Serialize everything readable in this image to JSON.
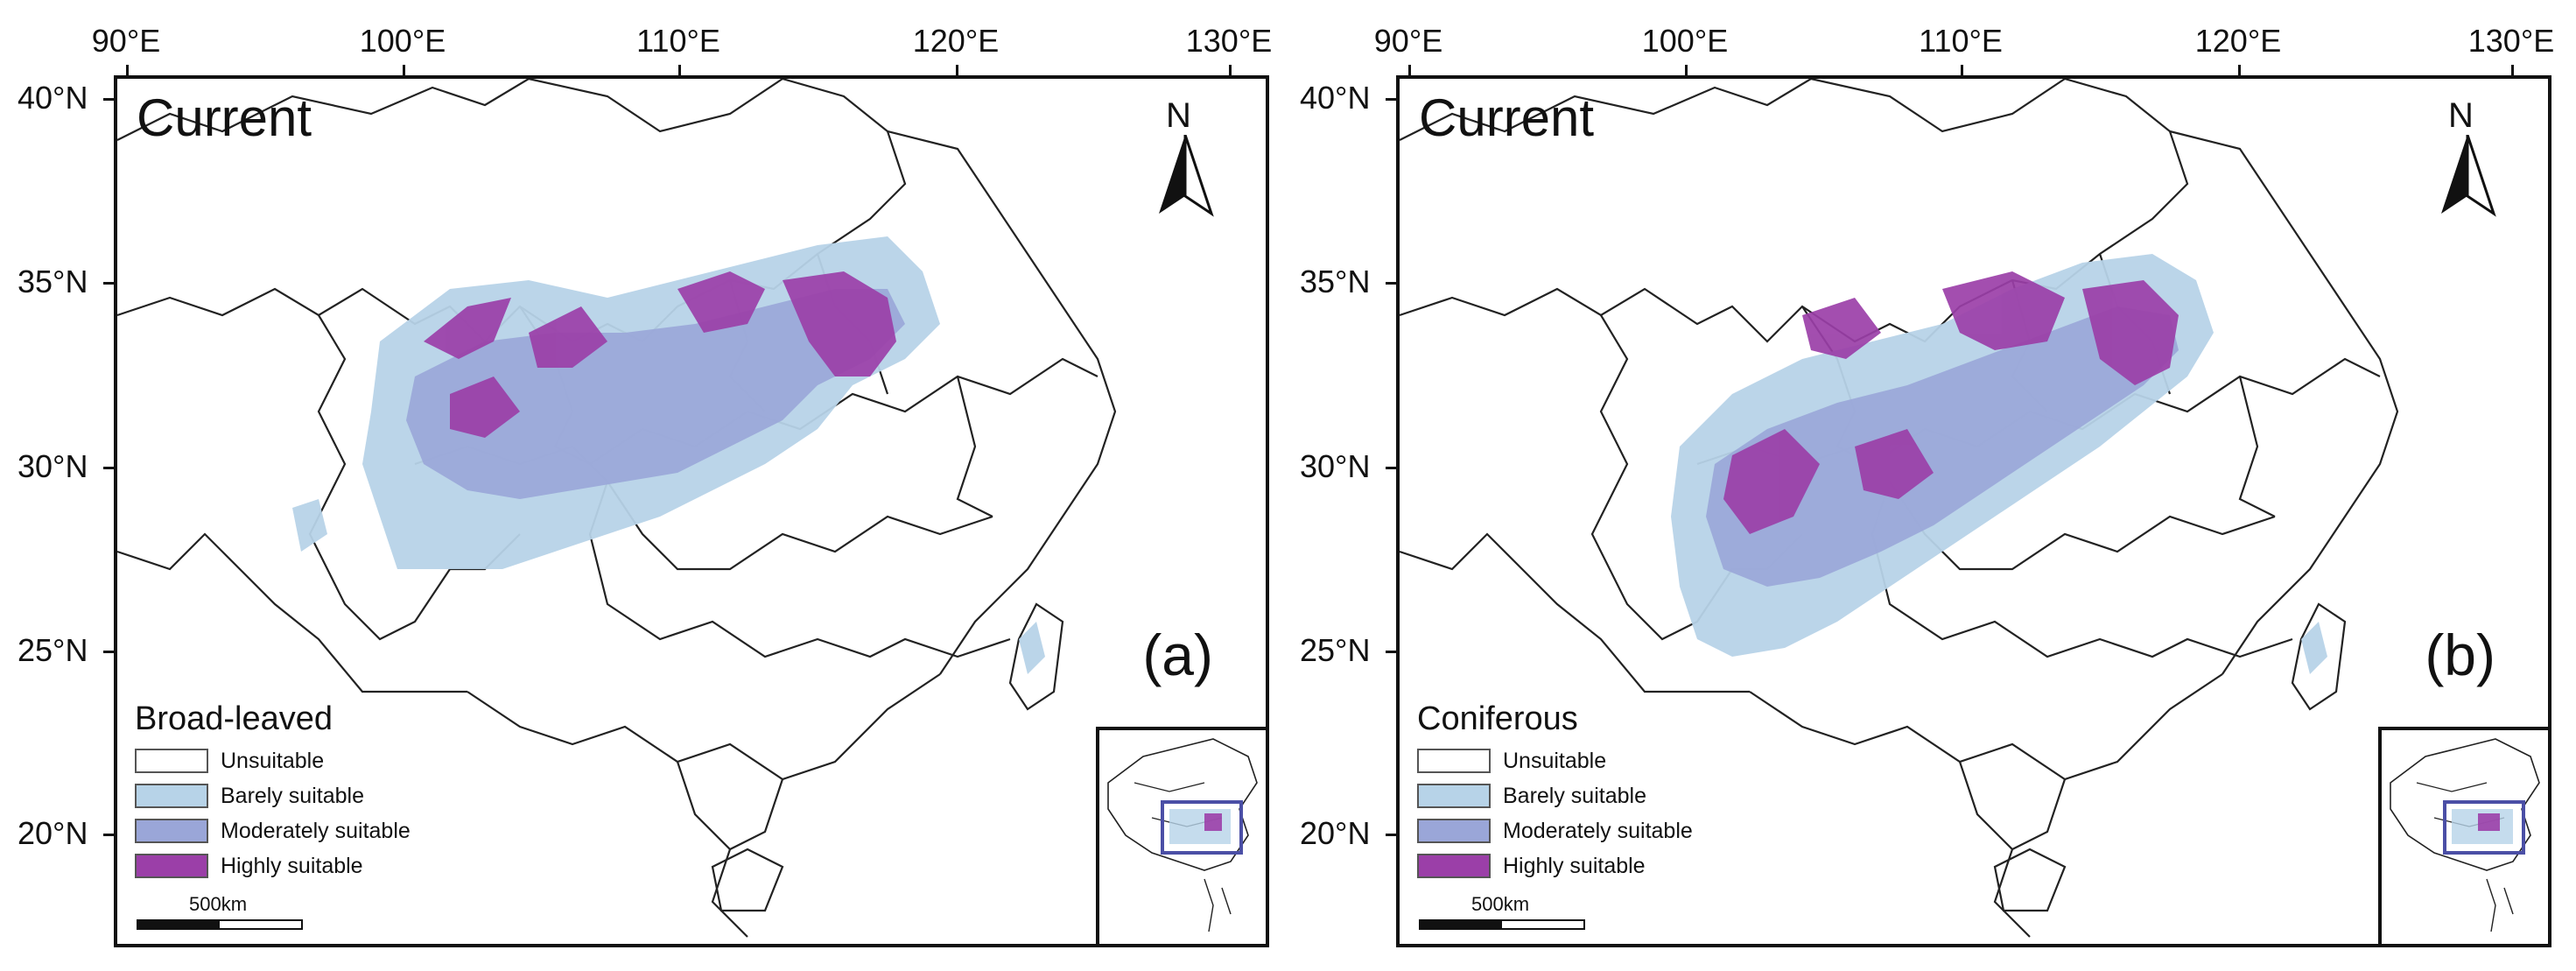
{
  "axes": {
    "lon_ticks": [
      "90°E",
      "100°E",
      "110°E",
      "120°E",
      "130°E"
    ],
    "lat_ticks": [
      "40°N",
      "35°N",
      "30°N",
      "25°N",
      "20°N"
    ]
  },
  "panels": [
    {
      "title": "Current",
      "label": "(a)",
      "legend_title": "Broad-leaved",
      "north_label": "N",
      "scale_label": "500km",
      "legend_items": [
        "Unsuitable",
        "Barely suitable",
        "Moderately suitable",
        "Highly suitable"
      ]
    },
    {
      "title": "Current",
      "label": "(b)",
      "legend_title": "Coniferous",
      "north_label": "N",
      "scale_label": "500km",
      "legend_items": [
        "Unsuitable",
        "Barely suitable",
        "Moderately suitable",
        "Highly suitable"
      ]
    }
  ],
  "colors": {
    "unsuitable": "#ffffff",
    "barely": "#b7d3e8",
    "moderately": "#9aa6d8",
    "highly": "#9b3fa8",
    "inset_box": "#4b4fa6"
  }
}
